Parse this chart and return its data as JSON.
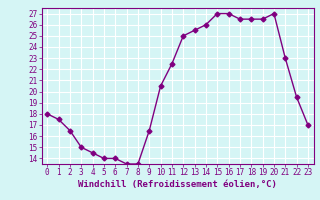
{
  "x": [
    0,
    1,
    2,
    3,
    4,
    5,
    6,
    7,
    8,
    9,
    10,
    11,
    12,
    13,
    14,
    15,
    16,
    17,
    18,
    19,
    20,
    21,
    22,
    23
  ],
  "y": [
    18,
    17.5,
    16.5,
    15,
    14.5,
    14,
    14,
    13.5,
    13.5,
    16.5,
    20.5,
    22.5,
    25,
    25.5,
    26,
    27,
    27,
    26.5,
    26.5,
    26.5,
    27,
    23,
    19.5,
    17
  ],
  "line_color": "#800080",
  "marker": "D",
  "markersize": 2.5,
  "linewidth": 1.0,
  "xlabel": "Windchill (Refroidissement éolien,°C)",
  "xlabel_fontsize": 6.5,
  "ylim": [
    13.5,
    27.5
  ],
  "xlim": [
    -0.5,
    23.5
  ],
  "yticks": [
    14,
    15,
    16,
    17,
    18,
    19,
    20,
    21,
    22,
    23,
    24,
    25,
    26,
    27
  ],
  "xticks": [
    0,
    1,
    2,
    3,
    4,
    5,
    6,
    7,
    8,
    9,
    10,
    11,
    12,
    13,
    14,
    15,
    16,
    17,
    18,
    19,
    20,
    21,
    22,
    23
  ],
  "bg_color": "#d5f5f5",
  "grid_color": "#aadddd",
  "tick_color": "#800080",
  "tick_label_color": "#800080",
  "tick_fontsize": 5.5,
  "spine_color": "#800080"
}
